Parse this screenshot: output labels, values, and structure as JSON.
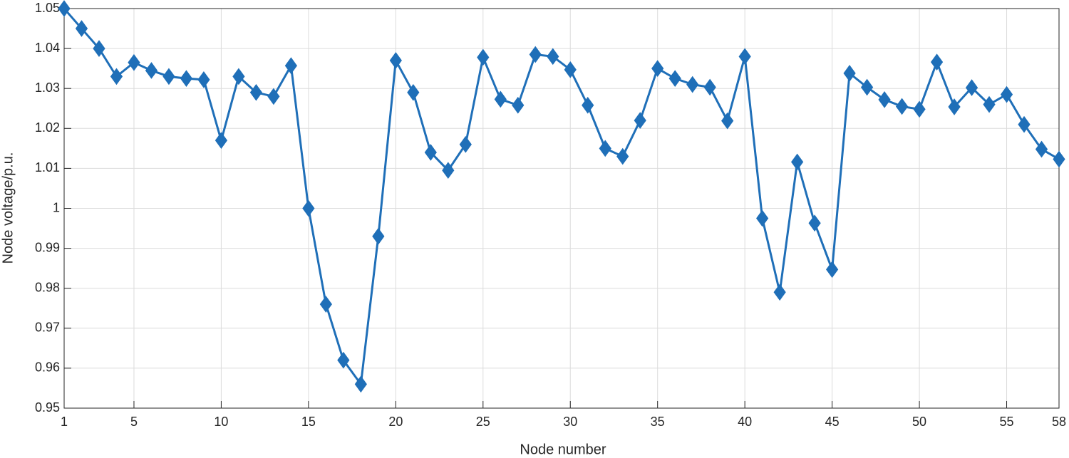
{
  "chart_data": {
    "type": "line",
    "x_label": "Node number",
    "y_label": "Node voltage/p.u.",
    "x": [
      1,
      2,
      3,
      4,
      5,
      6,
      7,
      8,
      9,
      10,
      11,
      12,
      13,
      14,
      15,
      16,
      17,
      18,
      19,
      20,
      21,
      22,
      23,
      24,
      25,
      26,
      27,
      28,
      29,
      30,
      31,
      32,
      33,
      34,
      35,
      36,
      37,
      38,
      39,
      40,
      41,
      42,
      43,
      44,
      45,
      46,
      47,
      48,
      49,
      50,
      51,
      52,
      53,
      54,
      55,
      56,
      57,
      58
    ],
    "values": [
      1.05,
      1.045,
      1.04,
      1.033,
      1.0365,
      1.0345,
      1.033,
      1.0325,
      1.0322,
      1.017,
      1.033,
      1.029,
      1.028,
      1.0357,
      1.0,
      0.976,
      0.962,
      0.956,
      0.993,
      1.037,
      1.029,
      1.014,
      1.0095,
      1.016,
      1.0378,
      1.0273,
      1.0258,
      1.0385,
      1.038,
      1.0347,
      1.0258,
      1.015,
      1.013,
      1.022,
      1.035,
      1.0325,
      1.031,
      1.0303,
      1.0219,
      1.038,
      0.9975,
      0.979,
      1.0116,
      0.9963,
      0.9847,
      1.0338,
      1.0303,
      1.0272,
      1.0255,
      1.0248,
      1.0366,
      1.0254,
      1.0302,
      1.026,
      1.0285,
      1.021,
      1.0148,
      1.0123
    ],
    "color": "#1f6fb8",
    "marker": "diamond",
    "xlim": [
      1,
      58
    ],
    "xticks": [
      1,
      5,
      10,
      15,
      20,
      25,
      30,
      35,
      40,
      45,
      50,
      55,
      58
    ],
    "ylim": [
      0.95,
      1.05
    ],
    "yticks": [
      0.95,
      0.96,
      0.97,
      0.98,
      0.99,
      1,
      1.01,
      1.02,
      1.03,
      1.04,
      1.05
    ],
    "grid": true
  }
}
